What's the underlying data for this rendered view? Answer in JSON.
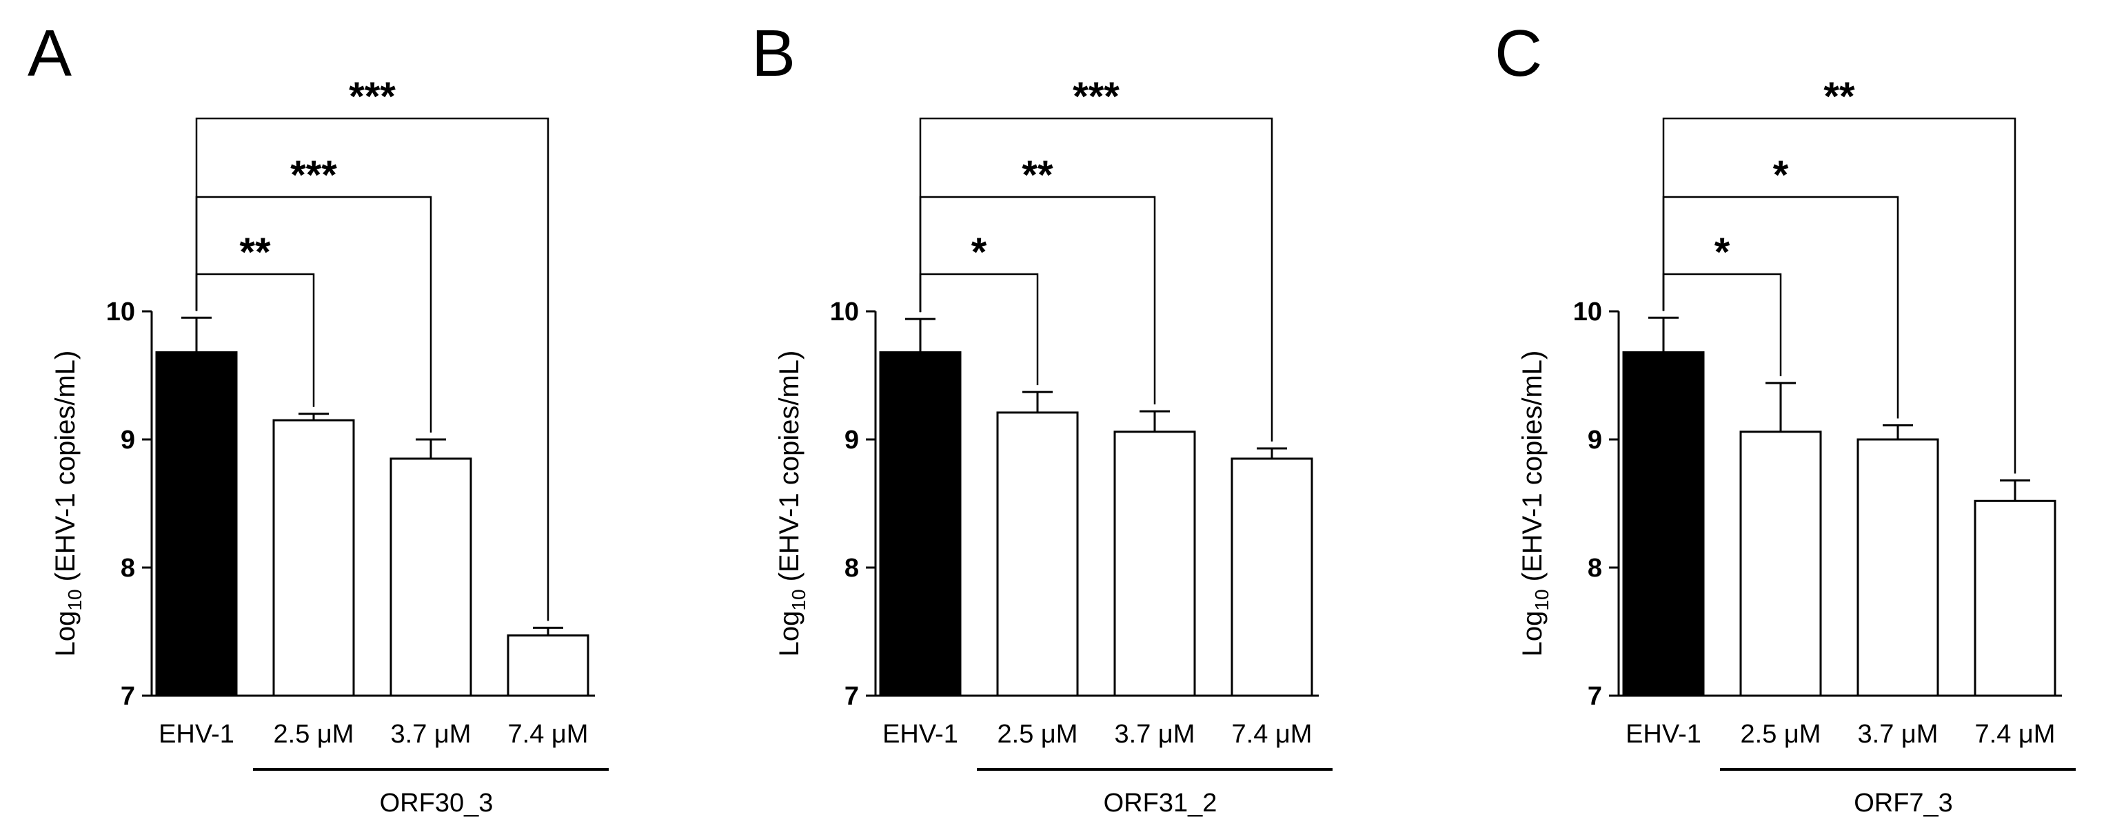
{
  "chart_data": [
    {
      "type": "bar",
      "panel": "A",
      "ylabel": "Log10 (EHV-1 copies/mL)",
      "ylim": [
        7,
        10
      ],
      "yticks": [
        "7",
        "8",
        "9",
        "10"
      ],
      "categories": [
        "EHV-1",
        "2.5 μM",
        "3.7 μM",
        "7.4 μM"
      ],
      "values": [
        9.68,
        9.15,
        8.85,
        7.47
      ],
      "errors": [
        0.27,
        0.05,
        0.15,
        0.06
      ],
      "bar_colors": [
        "#000000",
        "#ffffff",
        "#ffffff",
        "#ffffff"
      ],
      "group_label": "ORF30_3",
      "comparisons": [
        {
          "from": 0,
          "to": 1,
          "label": "**"
        },
        {
          "from": 0,
          "to": 2,
          "label": "***"
        },
        {
          "from": 0,
          "to": 3,
          "label": "***"
        }
      ]
    },
    {
      "type": "bar",
      "panel": "B",
      "ylabel": "Log10 (EHV-1 copies/mL)",
      "ylim": [
        7,
        10
      ],
      "yticks": [
        "7",
        "8",
        "9",
        "10"
      ],
      "categories": [
        "EHV-1",
        "2.5 μM",
        "3.7 μM",
        "7.4 μM"
      ],
      "values": [
        9.68,
        9.21,
        9.06,
        8.85
      ],
      "errors": [
        0.26,
        0.16,
        0.16,
        0.08
      ],
      "bar_colors": [
        "#000000",
        "#ffffff",
        "#ffffff",
        "#ffffff"
      ],
      "group_label": "ORF31_2",
      "comparisons": [
        {
          "from": 0,
          "to": 1,
          "label": "*"
        },
        {
          "from": 0,
          "to": 2,
          "label": "**"
        },
        {
          "from": 0,
          "to": 3,
          "label": "***"
        }
      ]
    },
    {
      "type": "bar",
      "panel": "C",
      "ylabel": "Log10 (EHV-1 copies/mL)",
      "ylim": [
        7,
        10
      ],
      "yticks": [
        "7",
        "8",
        "9",
        "10"
      ],
      "categories": [
        "EHV-1",
        "2.5 μM",
        "3.7 μM",
        "7.4 μM"
      ],
      "values": [
        9.68,
        9.06,
        9.0,
        8.52
      ],
      "errors": [
        0.27,
        0.38,
        0.11,
        0.16
      ],
      "bar_colors": [
        "#000000",
        "#ffffff",
        "#ffffff",
        "#ffffff"
      ],
      "group_label": "ORF7_3",
      "comparisons": [
        {
          "from": 0,
          "to": 1,
          "label": "*"
        },
        {
          "from": 0,
          "to": 2,
          "label": "*"
        },
        {
          "from": 0,
          "to": 3,
          "label": "**"
        }
      ]
    }
  ],
  "colors": {
    "ink": "#000000",
    "background": "#ffffff"
  }
}
